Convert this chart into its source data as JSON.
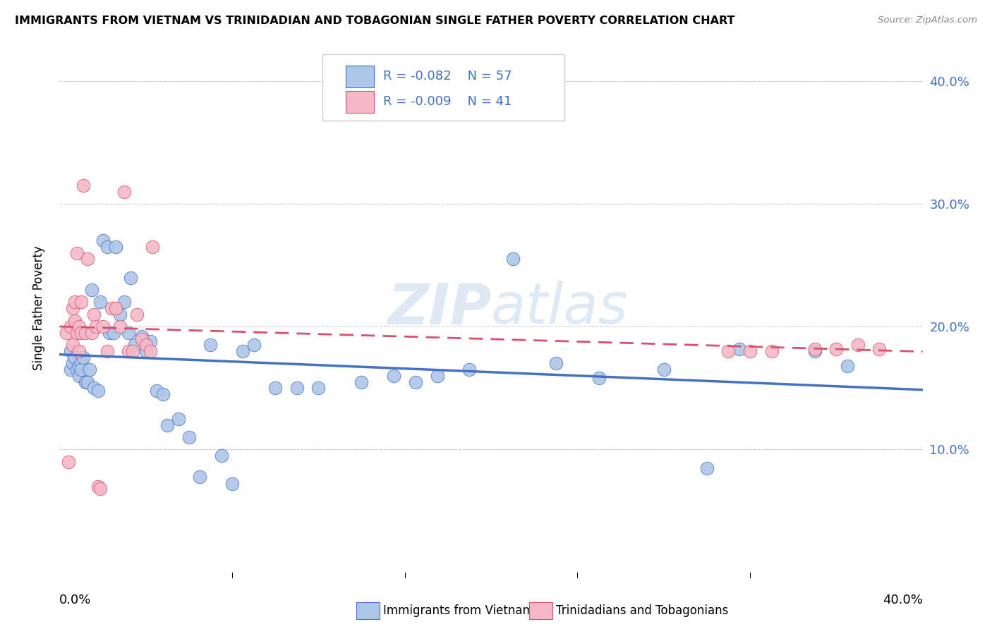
{
  "title": "IMMIGRANTS FROM VIETNAM VS TRINIDADIAN AND TOBAGONIAN SINGLE FATHER POVERTY CORRELATION CHART",
  "source": "Source: ZipAtlas.com",
  "ylabel": "Single Father Poverty",
  "legend_label1": "Immigrants from Vietnam",
  "legend_label2": "Trinidadians and Tobagonians",
  "r1": "-0.082",
  "n1": "57",
  "r2": "-0.009",
  "n2": "41",
  "color1": "#aec6e8",
  "color2": "#f4b8c8",
  "line_color1": "#4472c4",
  "line_color2": "#d94f6e",
  "watermark": "ZIPatlas",
  "xlim": [
    0.0,
    0.4
  ],
  "ylim": [
    0.0,
    0.43
  ],
  "yticks": [
    0.1,
    0.2,
    0.3,
    0.4
  ],
  "ytick_labels": [
    "10.0%",
    "20.0%",
    "30.0%",
    "40.0%"
  ],
  "vietnam_x": [
    0.005,
    0.005,
    0.006,
    0.007,
    0.008,
    0.009,
    0.009,
    0.01,
    0.01,
    0.011,
    0.012,
    0.013,
    0.014,
    0.015,
    0.016,
    0.018,
    0.019,
    0.02,
    0.022,
    0.023,
    0.025,
    0.026,
    0.028,
    0.03,
    0.032,
    0.033,
    0.035,
    0.038,
    0.04,
    0.042,
    0.045,
    0.048,
    0.05,
    0.055,
    0.06,
    0.065,
    0.07,
    0.075,
    0.08,
    0.085,
    0.09,
    0.1,
    0.11,
    0.12,
    0.14,
    0.155,
    0.165,
    0.175,
    0.19,
    0.21,
    0.23,
    0.25,
    0.28,
    0.3,
    0.315,
    0.35,
    0.365
  ],
  "vietnam_y": [
    0.18,
    0.165,
    0.17,
    0.175,
    0.165,
    0.168,
    0.16,
    0.17,
    0.165,
    0.175,
    0.155,
    0.155,
    0.165,
    0.23,
    0.15,
    0.148,
    0.22,
    0.27,
    0.265,
    0.195,
    0.195,
    0.265,
    0.21,
    0.22,
    0.195,
    0.24,
    0.185,
    0.192,
    0.18,
    0.188,
    0.148,
    0.145,
    0.12,
    0.125,
    0.11,
    0.078,
    0.185,
    0.095,
    0.072,
    0.18,
    0.185,
    0.15,
    0.15,
    0.15,
    0.155,
    0.16,
    0.155,
    0.16,
    0.165,
    0.255,
    0.17,
    0.158,
    0.165,
    0.085,
    0.182,
    0.18,
    0.168
  ],
  "trinidad_x": [
    0.003,
    0.004,
    0.005,
    0.006,
    0.006,
    0.007,
    0.007,
    0.008,
    0.008,
    0.009,
    0.009,
    0.01,
    0.01,
    0.011,
    0.012,
    0.013,
    0.015,
    0.016,
    0.017,
    0.018,
    0.019,
    0.02,
    0.022,
    0.024,
    0.026,
    0.028,
    0.03,
    0.032,
    0.034,
    0.036,
    0.038,
    0.04,
    0.042,
    0.043,
    0.31,
    0.32,
    0.33,
    0.35,
    0.36,
    0.37,
    0.38
  ],
  "trinidad_y": [
    0.195,
    0.09,
    0.2,
    0.215,
    0.185,
    0.205,
    0.22,
    0.26,
    0.195,
    0.18,
    0.2,
    0.22,
    0.195,
    0.315,
    0.195,
    0.255,
    0.195,
    0.21,
    0.2,
    0.07,
    0.068,
    0.2,
    0.18,
    0.215,
    0.215,
    0.2,
    0.31,
    0.18,
    0.18,
    0.21,
    0.19,
    0.185,
    0.18,
    0.265,
    0.18,
    0.18,
    0.18,
    0.182,
    0.182,
    0.185,
    0.182
  ]
}
